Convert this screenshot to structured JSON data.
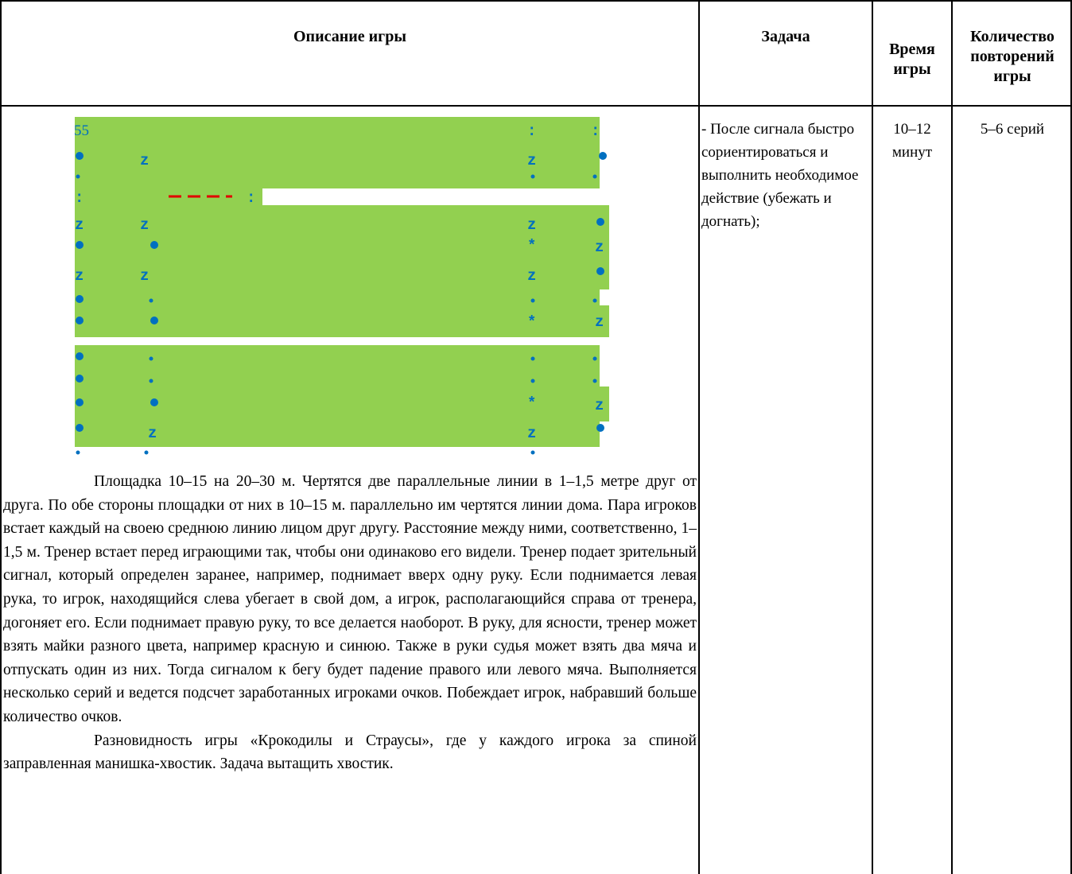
{
  "table": {
    "headers": {
      "description": "Описание игры",
      "task": "Задача",
      "time": "Время игры",
      "reps": "Количество повторений игры"
    },
    "row": {
      "figure_number": "55",
      "task": "- После сигнала быстро сориентироваться и выполнить необходимое действие (убежать и догнать);",
      "time": "10–12 минут",
      "reps": "5–6 серий"
    },
    "paragraphs": [
      "Площадка 10–15 на 20–30 м. Чертятся две параллельные линии в 1–1,5 метре друг от друга. По обе стороны площадки от них в 10–15 м. параллельно им чертятся линии дома. Пара игроков встает каждый на своею среднюю линию лицом друг другу. Расстояние между ними, соответственно, 1–1,5 м. Тренер встает перед играющими так, чтобы они одинаково его видели. Тренер подает зрительный сигнал, который определен заранее, например, поднимает вверх одну руку. Если поднимается левая рука, то игрок, находящийся слева убегает в свой дом, а игрок, располагающийся справа от тренера, догоняет его. Если поднимает правую руку, то все делается наоборот. В руку, для ясности, тренер может взять майки разного цвета, например красную и синюю. Также в руки судья может взять два мяча и отпускать один из них. Тогда сигналом к бегу будет падение правого или левого мяча. Выполняется несколько серий и ведется подсчет заработанных игроками очков. Побеждает игрок, набравший больше количество очков.",
      "Разновидность игры «Крокодилы и Страусы», где у каждого игрока за спиной заправленная манишка-хвостик. Задача вытащить хвостик."
    ]
  },
  "figure": {
    "field_color": "#92d050",
    "marker_color": "#0070c0",
    "line_color": "#e00000",
    "marker_z": "z",
    "marker_star": "*",
    "marker_dot": "•",
    "marker_colon": ":"
  }
}
